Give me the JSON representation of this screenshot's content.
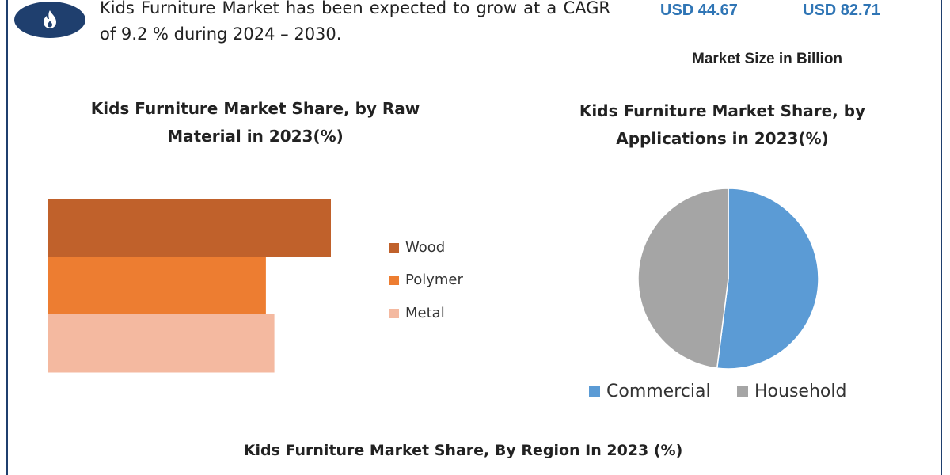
{
  "header": {
    "intro_text": "Kids Furniture Market has been expected to grow at a CAGR of 9.2 % during 2024 – 2030.",
    "usd_value_1": "USD 44.67",
    "usd_value_2": "USD 82.71",
    "market_size_label": "Market Size in Billion"
  },
  "colors": {
    "accent": "#2f75b5",
    "frame": "#1f3f6e",
    "wood": "#c0612b",
    "polymer": "#ed7d31",
    "metal": "#f4b9a0",
    "commercial": "#5b9bd5",
    "household": "#a5a5a5"
  },
  "icons": {
    "logo": "flame-logo-icon"
  },
  "chart_data": [
    {
      "type": "bar",
      "orientation": "horizontal",
      "title": "Kids Furniture Market Share, by Raw Material in 2023(%)",
      "categories": [
        "Wood",
        "Polymer",
        "Metal"
      ],
      "values": [
        100,
        77,
        80
      ],
      "xlim": [
        0,
        100
      ],
      "grid": false,
      "legend_position": "right"
    },
    {
      "type": "pie",
      "title": "Kids Furniture Market Share, by Applications in 2023(%)",
      "labels": [
        "Commercial",
        "Household"
      ],
      "values": [
        52,
        48
      ],
      "legend_position": "bottom"
    }
  ],
  "footer": {
    "region_title": "Kids Furniture Market Share, By Region In 2023 (%)"
  }
}
